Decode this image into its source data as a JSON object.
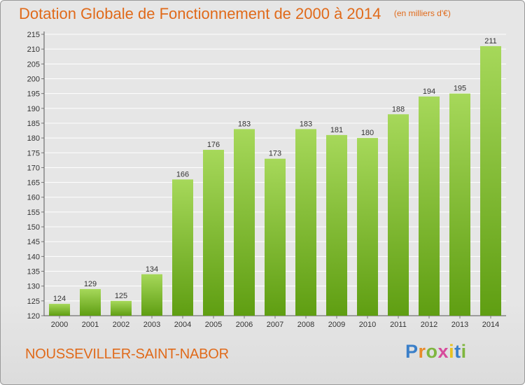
{
  "title": "Dotation Globale de Fonctionnement de 2000 à 2014",
  "unit_note": "(en milliers d'€)",
  "town": "NOUSSEVILLER-SAINT-NABOR",
  "logo_text": "Proxiti",
  "colors": {
    "title": "#e06a1a",
    "bar_light": "#a6d85a",
    "bar_dark": "#5f9e12",
    "grid": "#ffffff",
    "background": "#e6e6e6"
  },
  "chart_data": {
    "type": "bar",
    "categories": [
      "2000",
      "2001",
      "2002",
      "2003",
      "2004",
      "2005",
      "2006",
      "2007",
      "2008",
      "2009",
      "2010",
      "2011",
      "2012",
      "2013",
      "2014"
    ],
    "values": [
      124,
      129,
      125,
      134,
      166,
      176,
      183,
      173,
      183,
      181,
      180,
      188,
      194,
      195,
      211
    ],
    "ylim": [
      120,
      215
    ],
    "y_ticks": [
      120,
      125,
      130,
      135,
      140,
      145,
      150,
      155,
      160,
      165,
      170,
      175,
      180,
      185,
      190,
      195,
      200,
      205,
      210,
      215
    ],
    "grid": true,
    "data_labels": true
  }
}
